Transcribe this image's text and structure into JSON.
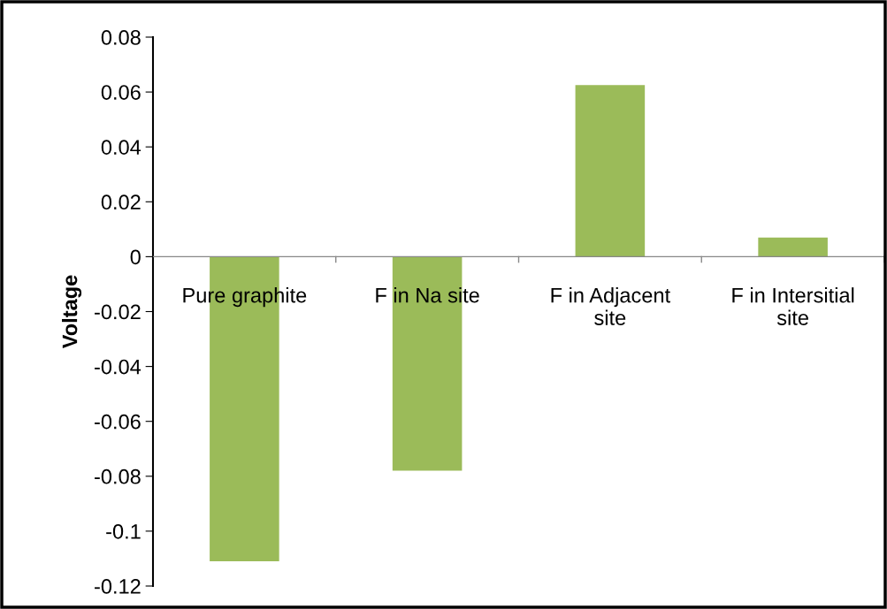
{
  "chart_data": {
    "type": "bar",
    "ylabel": "Voltage",
    "categories": [
      "Pure graphite",
      "F in Na site",
      "F in Adjacent site",
      "F in Intersitial site"
    ],
    "values": [
      -0.111,
      -0.078,
      0.0625,
      0.007
    ],
    "color": "#9bbb59",
    "ylim": [
      -0.12,
      0.08
    ],
    "yticks": [
      {
        "value": -0.12,
        "label": "-0.12"
      },
      {
        "value": -0.1,
        "label": "-0.1"
      },
      {
        "value": -0.08,
        "label": "-0.08"
      },
      {
        "value": -0.06,
        "label": "-0.06"
      },
      {
        "value": -0.04,
        "label": "-0.04"
      },
      {
        "value": -0.02,
        "label": "-0.02"
      },
      0,
      0.02,
      0.04,
      0.06,
      0.08
    ],
    "grid": false,
    "legend": false
  }
}
